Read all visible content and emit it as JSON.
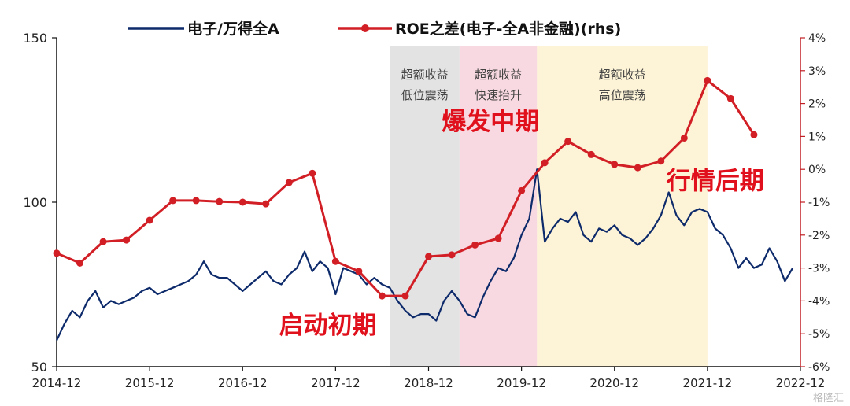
{
  "chart_data": {
    "type": "line",
    "legend_position": "top",
    "grid": false,
    "series": [
      {
        "name": "电子/万得全A",
        "axis": "left",
        "color": "#0d2a6b",
        "points": [
          [
            "2014-12",
            58
          ],
          [
            "2015-01",
            63
          ],
          [
            "2015-02",
            67
          ],
          [
            "2015-03",
            65
          ],
          [
            "2015-04",
            70
          ],
          [
            "2015-05",
            73
          ],
          [
            "2015-06",
            68
          ],
          [
            "2015-07",
            70
          ],
          [
            "2015-08",
            69
          ],
          [
            "2015-09",
            70
          ],
          [
            "2015-10",
            71
          ],
          [
            "2015-11",
            73
          ],
          [
            "2015-12",
            74
          ],
          [
            "2016-01",
            72
          ],
          [
            "2016-02",
            73
          ],
          [
            "2016-03",
            74
          ],
          [
            "2016-04",
            75
          ],
          [
            "2016-05",
            76
          ],
          [
            "2016-06",
            78
          ],
          [
            "2016-07",
            82
          ],
          [
            "2016-08",
            78
          ],
          [
            "2016-09",
            77
          ],
          [
            "2016-10",
            77
          ],
          [
            "2016-11",
            75
          ],
          [
            "2016-12",
            73
          ],
          [
            "2017-01",
            75
          ],
          [
            "2017-02",
            77
          ],
          [
            "2017-03",
            79
          ],
          [
            "2017-04",
            76
          ],
          [
            "2017-05",
            75
          ],
          [
            "2017-06",
            78
          ],
          [
            "2017-07",
            80
          ],
          [
            "2017-08",
            85
          ],
          [
            "2017-09",
            79
          ],
          [
            "2017-10",
            82
          ],
          [
            "2017-11",
            80
          ],
          [
            "2017-12",
            72
          ],
          [
            "2018-01",
            80
          ],
          [
            "2018-02",
            79
          ],
          [
            "2018-03",
            78
          ],
          [
            "2018-04",
            75
          ],
          [
            "2018-05",
            77
          ],
          [
            "2018-06",
            75
          ],
          [
            "2018-07",
            74
          ],
          [
            "2018-08",
            70
          ],
          [
            "2018-09",
            67
          ],
          [
            "2018-10",
            65
          ],
          [
            "2018-11",
            66
          ],
          [
            "2018-12",
            66
          ],
          [
            "2019-01",
            64
          ],
          [
            "2019-02",
            70
          ],
          [
            "2019-03",
            73
          ],
          [
            "2019-04",
            70
          ],
          [
            "2019-05",
            66
          ],
          [
            "2019-06",
            65
          ],
          [
            "2019-07",
            71
          ],
          [
            "2019-08",
            76
          ],
          [
            "2019-09",
            80
          ],
          [
            "2019-10",
            79
          ],
          [
            "2019-11",
            83
          ],
          [
            "2019-12",
            90
          ],
          [
            "2020-01",
            95
          ],
          [
            "2020-02",
            110
          ],
          [
            "2020-03",
            88
          ],
          [
            "2020-04",
            92
          ],
          [
            "2020-05",
            95
          ],
          [
            "2020-06",
            94
          ],
          [
            "2020-07",
            97
          ],
          [
            "2020-08",
            90
          ],
          [
            "2020-09",
            88
          ],
          [
            "2020-10",
            92
          ],
          [
            "2020-11",
            91
          ],
          [
            "2020-12",
            93
          ],
          [
            "2021-01",
            90
          ],
          [
            "2021-02",
            89
          ],
          [
            "2021-03",
            87
          ],
          [
            "2021-04",
            89
          ],
          [
            "2021-05",
            92
          ],
          [
            "2021-06",
            96
          ],
          [
            "2021-07",
            103
          ],
          [
            "2021-08",
            96
          ],
          [
            "2021-09",
            93
          ],
          [
            "2021-10",
            97
          ],
          [
            "2021-11",
            98
          ],
          [
            "2021-12",
            97
          ],
          [
            "2022-01",
            92
          ],
          [
            "2022-02",
            90
          ],
          [
            "2022-03",
            86
          ],
          [
            "2022-04",
            80
          ],
          [
            "2022-05",
            83
          ],
          [
            "2022-06",
            80
          ],
          [
            "2022-07",
            81
          ],
          [
            "2022-08",
            86
          ],
          [
            "2022-09",
            82
          ],
          [
            "2022-10",
            76
          ],
          [
            "2022-11",
            80
          ]
        ]
      },
      {
        "name": "ROE之差(电子-全A非金融)(rhs)",
        "axis": "right",
        "color": "#d21f26",
        "marker": "circle",
        "points": [
          [
            "2014-12",
            -2.55
          ],
          [
            "2015-03",
            -2.85
          ],
          [
            "2015-06",
            -2.2
          ],
          [
            "2015-09",
            -2.15
          ],
          [
            "2015-12",
            -1.55
          ],
          [
            "2016-03",
            -0.95
          ],
          [
            "2016-06",
            -0.95
          ],
          [
            "2016-09",
            -0.98
          ],
          [
            "2016-12",
            -1.0
          ],
          [
            "2017-03",
            -1.05
          ],
          [
            "2017-06",
            -0.4
          ],
          [
            "2017-09",
            -0.12
          ],
          [
            "2017-12",
            -2.8
          ],
          [
            "2018-03",
            -3.1
          ],
          [
            "2018-06",
            -3.85
          ],
          [
            "2018-09",
            -3.85
          ],
          [
            "2018-12",
            -2.65
          ],
          [
            "2019-03",
            -2.6
          ],
          [
            "2019-06",
            -2.3
          ],
          [
            "2019-09",
            -2.1
          ],
          [
            "2019-12",
            -0.65
          ],
          [
            "2020-03",
            0.2
          ],
          [
            "2020-06",
            0.85
          ],
          [
            "2020-09",
            0.45
          ],
          [
            "2020-12",
            0.15
          ],
          [
            "2021-03",
            0.05
          ],
          [
            "2021-06",
            0.25
          ],
          [
            "2021-09",
            0.95
          ],
          [
            "2021-12",
            2.7
          ],
          [
            "2022-03",
            2.15
          ],
          [
            "2022-06",
            1.05
          ]
        ]
      }
    ],
    "y_left": {
      "min": 50,
      "max": 150,
      "ticks": [
        "50",
        "100",
        "150"
      ]
    },
    "y_right": {
      "min": -6,
      "max": 4,
      "ticks": [
        "-6%",
        "-5%",
        "-4%",
        "-3%",
        "-2%",
        "-1%",
        "0%",
        "1%",
        "2%",
        "3%",
        "4%"
      ]
    },
    "x_ticks": [
      "2014-12",
      "2015-12",
      "2016-12",
      "2017-12",
      "2018-12",
      "2019-12",
      "2020-12",
      "2021-12",
      "2022-12"
    ],
    "x_range": [
      "2014-12",
      "2022-12"
    ],
    "shaded_regions": [
      {
        "start": "2018-07",
        "end": "2019-04",
        "color": "#e3e3e3",
        "label_line1": "超额收益",
        "label_line2": "低位震荡"
      },
      {
        "start": "2019-04",
        "end": "2020-02",
        "color": "#f8d9e1",
        "label_line1": "超额收益",
        "label_line2": "快速抬升"
      },
      {
        "start": "2020-02",
        "end": "2021-12",
        "color": "#fdf3d6",
        "label_line1": "超额收益",
        "label_line2": "高位震荡"
      }
    ],
    "phase_labels": [
      {
        "text": "启动初期",
        "at": "2017-11",
        "y_left": 60
      },
      {
        "text": "爆发中期",
        "at": "2019-08",
        "y_left": 122
      },
      {
        "text": "行情后期",
        "at": "2022-01",
        "y_left": 104
      }
    ]
  },
  "watermark": "格隆汇"
}
